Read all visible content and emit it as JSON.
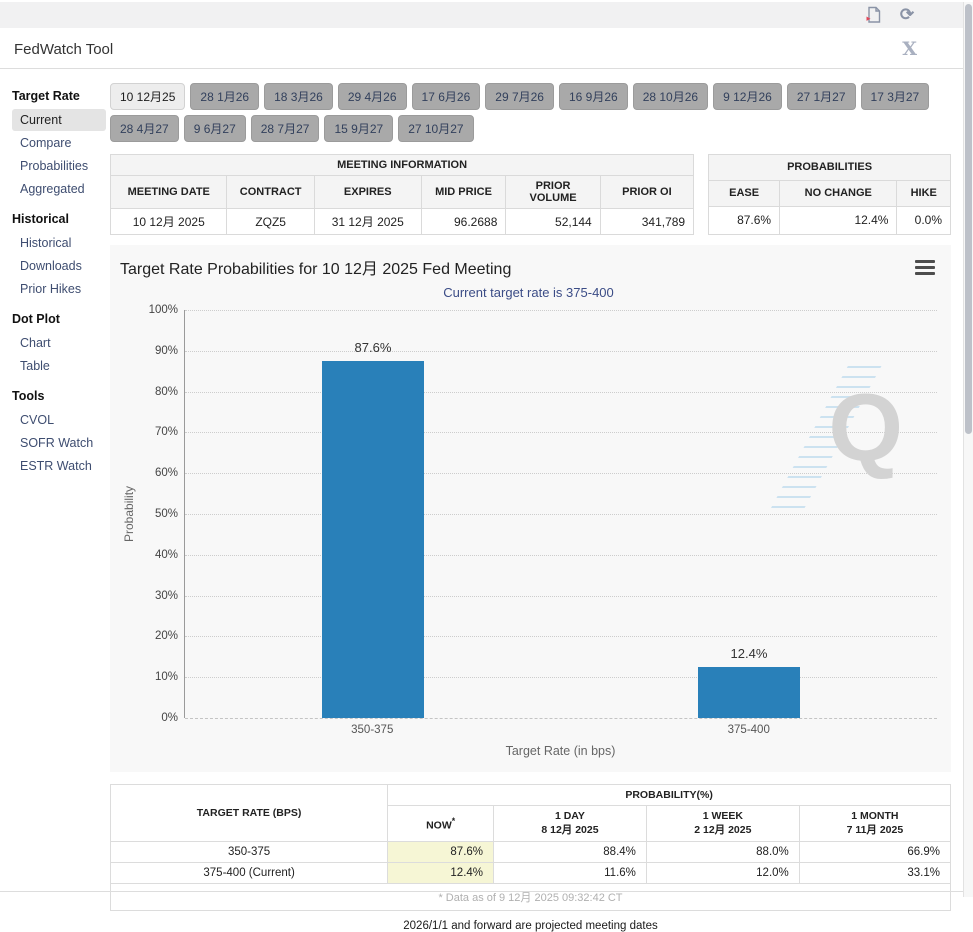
{
  "header": {
    "title": "FedWatch Tool"
  },
  "icons": {
    "export_file": "file-export",
    "refresh": "⟳",
    "close": "X",
    "chart_menu": "hamburger"
  },
  "sidebar": {
    "sections": [
      {
        "heading": "Target Rate",
        "items": [
          {
            "label": "Current",
            "selected": true
          },
          {
            "label": "Compare",
            "selected": false
          },
          {
            "label": "Probabilities",
            "selected": false
          },
          {
            "label": "Aggregated",
            "selected": false
          }
        ]
      },
      {
        "heading": "Historical",
        "items": [
          {
            "label": "Historical",
            "selected": false
          },
          {
            "label": "Downloads",
            "selected": false
          },
          {
            "label": "Prior Hikes",
            "selected": false
          }
        ]
      },
      {
        "heading": "Dot Plot",
        "items": [
          {
            "label": "Chart",
            "selected": false
          },
          {
            "label": "Table",
            "selected": false
          }
        ]
      },
      {
        "heading": "Tools",
        "items": [
          {
            "label": "CVOL",
            "selected": false
          },
          {
            "label": "SOFR Watch",
            "selected": false
          },
          {
            "label": "ESTR Watch",
            "selected": false
          }
        ]
      }
    ]
  },
  "tabs": {
    "selected_index": 0,
    "items": [
      {
        "label": "10 12月25"
      },
      {
        "label": "28 1月26"
      },
      {
        "label": "18 3月26"
      },
      {
        "label": "29 4月26"
      },
      {
        "label": "17 6月26"
      },
      {
        "label": "29 7月26"
      },
      {
        "label": "16 9月26"
      },
      {
        "label": "28 10月26"
      },
      {
        "label": "9 12月26"
      },
      {
        "label": "27 1月27"
      },
      {
        "label": "17 3月27"
      },
      {
        "label": "28 4月27"
      },
      {
        "label": "9 6月27"
      },
      {
        "label": "28 7月27"
      },
      {
        "label": "15 9月27"
      },
      {
        "label": "27 10月27"
      }
    ]
  },
  "meeting_info": {
    "title": "MEETING INFORMATION",
    "columns": [
      "MEETING DATE",
      "CONTRACT",
      "EXPIRES",
      "MID PRICE",
      "PRIOR VOLUME",
      "PRIOR OI"
    ],
    "row": [
      "10 12月 2025",
      "ZQZ5",
      "31 12月 2025",
      "96.2688",
      "52,144",
      "341,789"
    ]
  },
  "probabilities_info": {
    "title": "PROBABILITIES",
    "columns": [
      "EASE",
      "NO CHANGE",
      "HIKE"
    ],
    "row": [
      "87.6%",
      "12.4%",
      "0.0%"
    ]
  },
  "chart_data": {
    "type": "bar",
    "title": "Target Rate Probabilities for 10 12月 2025 Fed Meeting",
    "subtitle": "Current target rate is 375-400",
    "categories": [
      "350-375",
      "375-400"
    ],
    "values": [
      87.6,
      12.4
    ],
    "value_labels": [
      "87.6%",
      "12.4%"
    ],
    "xlabel": "Target Rate (in bps)",
    "ylabel": "Probability",
    "ylim": [
      0,
      100
    ],
    "ytick_step": 10,
    "bar_color": "#2980b9",
    "grid": "dotted-horizontal",
    "legend": "none"
  },
  "prob_table": {
    "col1_header": "TARGET RATE (BPS)",
    "group_header": "PROBABILITY(%)",
    "now_label": "NOW",
    "now_asterisk": "*",
    "sub_headers": [
      {
        "label": "1 DAY",
        "date": "8 12月 2025"
      },
      {
        "label": "1 WEEK",
        "date": "2 12月 2025"
      },
      {
        "label": "1 MONTH",
        "date": "7 11月 2025"
      }
    ],
    "rows": [
      {
        "rate": "350-375",
        "now": "87.6%",
        "day": "88.4%",
        "week": "88.0%",
        "month": "66.9%"
      },
      {
        "rate": "375-400 (Current)",
        "now": "12.4%",
        "day": "11.6%",
        "week": "12.0%",
        "month": "33.1%"
      }
    ],
    "footnote": "* Data as of 9 12月 2025 09:32:42 CT"
  },
  "footer_note": "2026/1/1 and forward are projected meeting dates"
}
